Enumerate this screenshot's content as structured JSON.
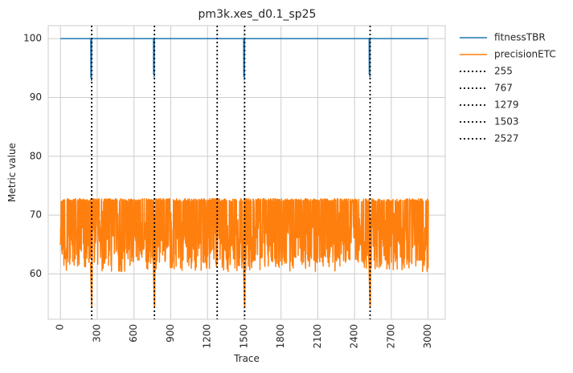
{
  "chart_data": {
    "type": "line",
    "title": "pm3k.xes_d0.1_sp25",
    "xlabel": "Trace",
    "ylabel": "Metric value",
    "xlim": [
      -100,
      3140
    ],
    "ylim": [
      52.3,
      102.2
    ],
    "x_ticks": [
      0,
      300,
      600,
      900,
      1200,
      1500,
      1800,
      2100,
      2400,
      2700,
      3000
    ],
    "y_ticks": [
      60,
      70,
      80,
      90,
      100
    ],
    "grid": true,
    "legend_position": "outside-top-right",
    "series": [
      {
        "name": "fitnessTBR",
        "color": "#1f77b4",
        "baseline": 100,
        "dips": [
          {
            "x": 255,
            "min": 92.8
          },
          {
            "x": 767,
            "min": 93.4
          },
          {
            "x": 1503,
            "min": 93.0
          },
          {
            "x": 2527,
            "min": 93.4
          }
        ],
        "x_range": [
          0,
          3000
        ]
      },
      {
        "name": "precisionETC",
        "color": "#ff7f0e",
        "band_low": 60.4,
        "band_high": 72.8,
        "dips": [
          {
            "x": 255,
            "min": 54.5
          },
          {
            "x": 767,
            "min": 54.5
          },
          {
            "x": 1503,
            "min": 54.5
          },
          {
            "x": 2527,
            "min": 54.5
          }
        ],
        "x_range": [
          0,
          3000
        ]
      }
    ],
    "vlines": [
      {
        "name": "255",
        "x": 255
      },
      {
        "name": "767",
        "x": 767
      },
      {
        "name": "1279",
        "x": 1279
      },
      {
        "name": "1503",
        "x": 1503
      },
      {
        "name": "2527",
        "x": 2527
      }
    ]
  }
}
